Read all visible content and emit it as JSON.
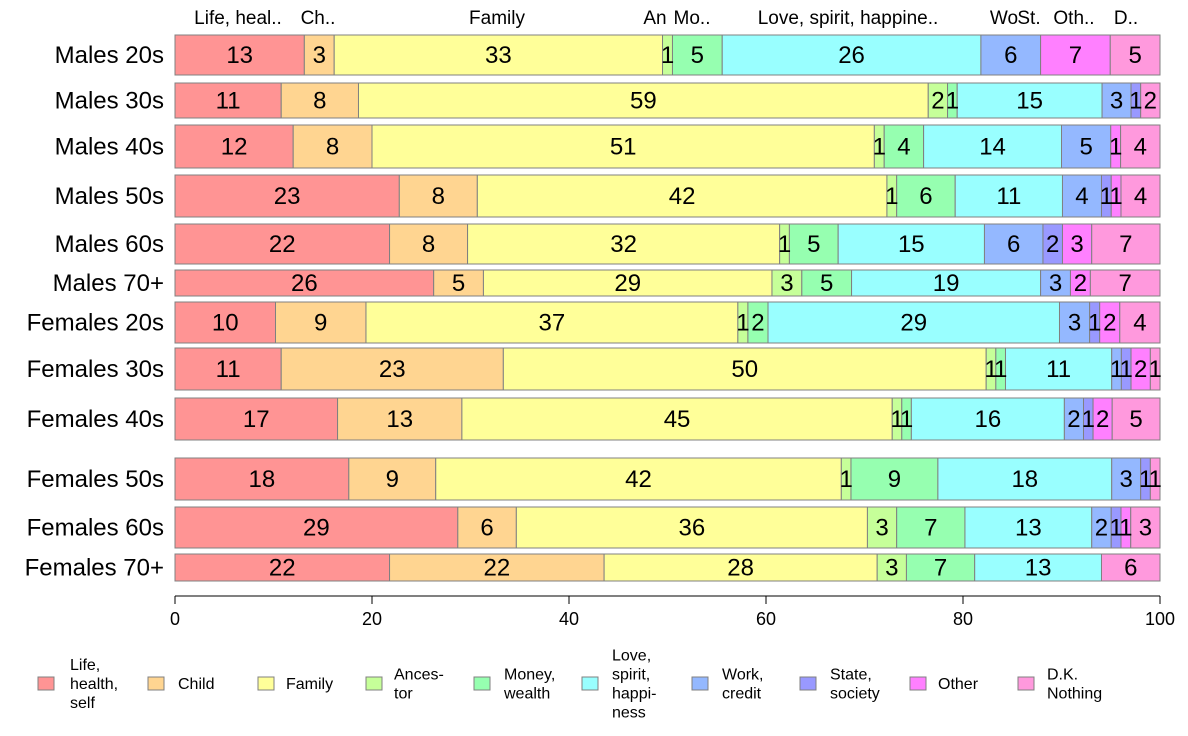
{
  "chart_data": {
    "type": "bar",
    "orientation": "horizontal",
    "stacked": true,
    "bar_heights_proportional_to_sample_size": true,
    "xlim": [
      0,
      100
    ],
    "x_ticks": [
      "0",
      "20",
      "40",
      "60",
      "80",
      "100"
    ],
    "grid": false,
    "legend_position": "bottom",
    "categories": [
      "Males 20s",
      "Males 30s",
      "Males 40s",
      "Males 50s",
      "Males 60s",
      "Males 70+",
      "Females 20s",
      "Females 30s",
      "Females 40s",
      "Females 50s",
      "Females 60s",
      "Females 70+"
    ],
    "column_labels": [
      "Life, heal..",
      "Ch..",
      "Family",
      "An",
      "Mo..",
      "Love, spirit, happine..",
      "Wo",
      "St.",
      "Oth..",
      "D.."
    ],
    "series": [
      {
        "name": "Life, health, self",
        "color": "#ff9494",
        "values": [
          13,
          11,
          12,
          23,
          22,
          26,
          10,
          11,
          17,
          18,
          29,
          22
        ]
      },
      {
        "name": "Child",
        "color": "#ffd591",
        "values": [
          3,
          8,
          8,
          8,
          8,
          5,
          9,
          23,
          13,
          9,
          6,
          22
        ]
      },
      {
        "name": "Family",
        "color": "#ffff99",
        "values": [
          33,
          59,
          51,
          42,
          32,
          29,
          37,
          50,
          45,
          42,
          36,
          28
        ]
      },
      {
        "name": "Ances- tor",
        "color": "#c6ff99",
        "values": [
          1,
          2,
          1,
          1,
          1,
          3,
          1,
          1,
          1,
          1,
          3,
          3
        ]
      },
      {
        "name": "Money, wealth",
        "color": "#96ffb0",
        "values": [
          5,
          1,
          4,
          6,
          5,
          5,
          2,
          1,
          1,
          9,
          7,
          7
        ]
      },
      {
        "name": "Love, spirit, happi- ness",
        "color": "#99ffff",
        "values": [
          26,
          15,
          14,
          11,
          15,
          19,
          29,
          11,
          16,
          18,
          13,
          13
        ]
      },
      {
        "name": "Work, credit",
        "color": "#94b8ff",
        "values": [
          6,
          3,
          5,
          4,
          6,
          3,
          3,
          1,
          2,
          3,
          2,
          0
        ]
      },
      {
        "name": "State, society",
        "color": "#9999ff",
        "values": [
          0,
          1,
          0,
          1,
          2,
          0,
          1,
          1,
          1,
          1,
          1,
          0
        ]
      },
      {
        "name": "Other",
        "color": "#ff80ff",
        "values": [
          7,
          0,
          1,
          1,
          3,
          2,
          2,
          2,
          2,
          0,
          1,
          0
        ]
      },
      {
        "name": "D.K. Nothing",
        "color": "#ff99dd",
        "values": [
          5,
          2,
          4,
          4,
          7,
          7,
          4,
          1,
          5,
          1,
          3,
          6
        ]
      }
    ],
    "legend_entries": [
      [
        "Life,",
        "health,",
        "self"
      ],
      [
        "Child"
      ],
      [
        "Family"
      ],
      [
        "Ances-",
        "tor"
      ],
      [
        "Money,",
        "wealth"
      ],
      [
        "Love,",
        "spirit,",
        "happi-",
        "ness"
      ],
      [
        "Work,",
        "credit"
      ],
      [
        "State,",
        "society"
      ],
      [
        "Other"
      ],
      [
        "D.K.",
        "Nothing"
      ]
    ]
  }
}
